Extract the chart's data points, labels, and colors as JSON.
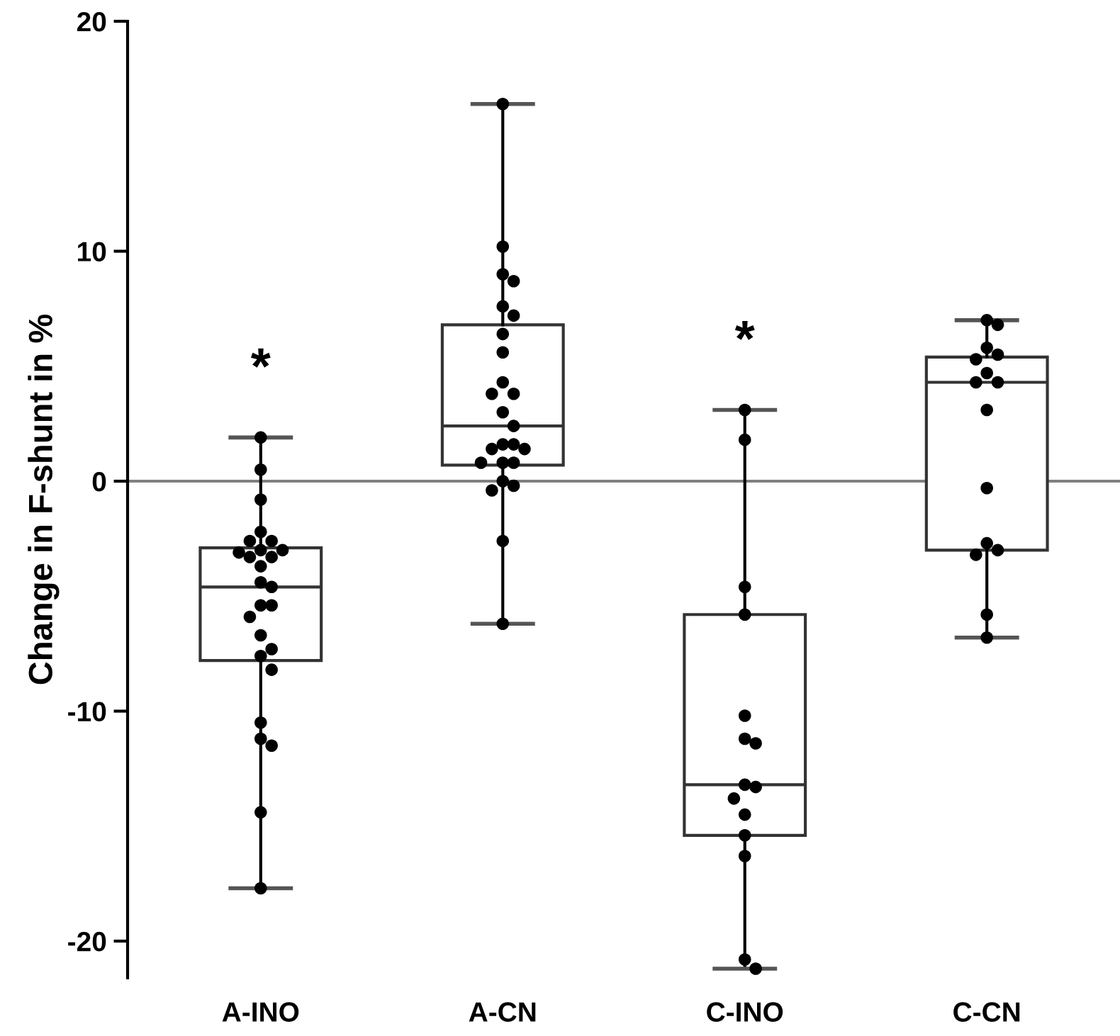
{
  "chart_data": {
    "type": "box",
    "ylabel": "Change in F-shunt in %",
    "categories": [
      "A-INO",
      "A-CN",
      "C-INO",
      "C-CN"
    ],
    "boxes": [
      {
        "low": -17.7,
        "q1": -7.8,
        "median": -4.6,
        "q3": -2.9,
        "high": 1.9
      },
      {
        "low": -6.2,
        "q1": 0.7,
        "median": 2.4,
        "q3": 6.8,
        "high": 16.4
      },
      {
        "low": -21.2,
        "q1": -15.4,
        "median": -13.2,
        "q3": -5.8,
        "high": 3.1
      },
      {
        "low": -6.8,
        "q1": -3.0,
        "median": 4.3,
        "q3": 5.4,
        "high": 7.0
      }
    ],
    "series": [
      {
        "type": "scatter",
        "color": "#000000",
        "x": [
          "A-INO",
          "A-INO",
          "A-INO",
          "A-INO",
          "A-INO",
          "A-INO",
          "A-INO",
          "A-INO",
          "A-INO",
          "A-INO",
          "A-INO",
          "A-INO",
          "A-INO",
          "A-INO",
          "A-INO",
          "A-INO",
          "A-INO",
          "A-INO",
          "A-INO",
          "A-INO",
          "A-INO",
          "A-INO",
          "A-INO",
          "A-INO",
          "A-INO",
          "A-INO"
        ],
        "values": [
          1.9,
          0.5,
          -0.8,
          -2.2,
          -2.6,
          -2.6,
          -3.0,
          -3.0,
          -3.1,
          -3.3,
          -3.3,
          -3.7,
          -4.4,
          -4.6,
          -5.4,
          -5.4,
          -5.9,
          -6.7,
          -7.3,
          -7.6,
          -8.2,
          -10.5,
          -11.2,
          -11.5,
          -14.4,
          -17.7
        ]
      },
      {
        "type": "scatter",
        "color": "#000000",
        "x": [
          "A-CN",
          "A-CN",
          "A-CN",
          "A-CN",
          "A-CN",
          "A-CN",
          "A-CN",
          "A-CN",
          "A-CN",
          "A-CN",
          "A-CN",
          "A-CN",
          "A-CN",
          "A-CN",
          "A-CN",
          "A-CN",
          "A-CN",
          "A-CN",
          "A-CN",
          "A-CN",
          "A-CN",
          "A-CN",
          "A-CN",
          "A-CN",
          "A-CN"
        ],
        "values": [
          16.4,
          10.2,
          9.0,
          8.7,
          7.6,
          7.2,
          6.4,
          5.6,
          4.3,
          3.8,
          3.8,
          3.0,
          2.4,
          1.6,
          1.6,
          1.4,
          1.4,
          0.8,
          0.8,
          0.8,
          0.0,
          -0.2,
          -0.4,
          -2.6,
          -6.2
        ]
      },
      {
        "type": "scatter",
        "color": "#000000",
        "x": [
          "C-INO",
          "C-INO",
          "C-INO",
          "C-INO",
          "C-INO",
          "C-INO",
          "C-INO",
          "C-INO",
          "C-INO",
          "C-INO",
          "C-INO",
          "C-INO",
          "C-INO",
          "C-INO",
          "C-INO"
        ],
        "values": [
          3.1,
          1.8,
          -4.6,
          -5.8,
          -10.2,
          -11.2,
          -11.4,
          -13.2,
          -13.3,
          -13.8,
          -14.5,
          -15.4,
          -16.3,
          -20.8,
          -21.2
        ]
      },
      {
        "type": "scatter",
        "color": "#000000",
        "x": [
          "C-CN",
          "C-CN",
          "C-CN",
          "C-CN",
          "C-CN",
          "C-CN",
          "C-CN",
          "C-CN",
          "C-CN",
          "C-CN",
          "C-CN",
          "C-CN",
          "C-CN",
          "C-CN",
          "C-CN"
        ],
        "values": [
          7.0,
          6.8,
          5.8,
          5.5,
          5.3,
          4.7,
          4.3,
          4.3,
          3.1,
          -0.3,
          -2.7,
          -3.0,
          -3.2,
          -5.8,
          -6.8
        ]
      }
    ],
    "marker": "circle",
    "ylim": [
      -21.6,
      20
    ],
    "yticks": [
      -20,
      -10,
      0,
      10,
      20
    ],
    "ref_lines": [
      {
        "axis": "y",
        "value": 0,
        "color": "#808080"
      }
    ],
    "annotations": [
      "*",
      "*"
    ],
    "grid": false
  }
}
